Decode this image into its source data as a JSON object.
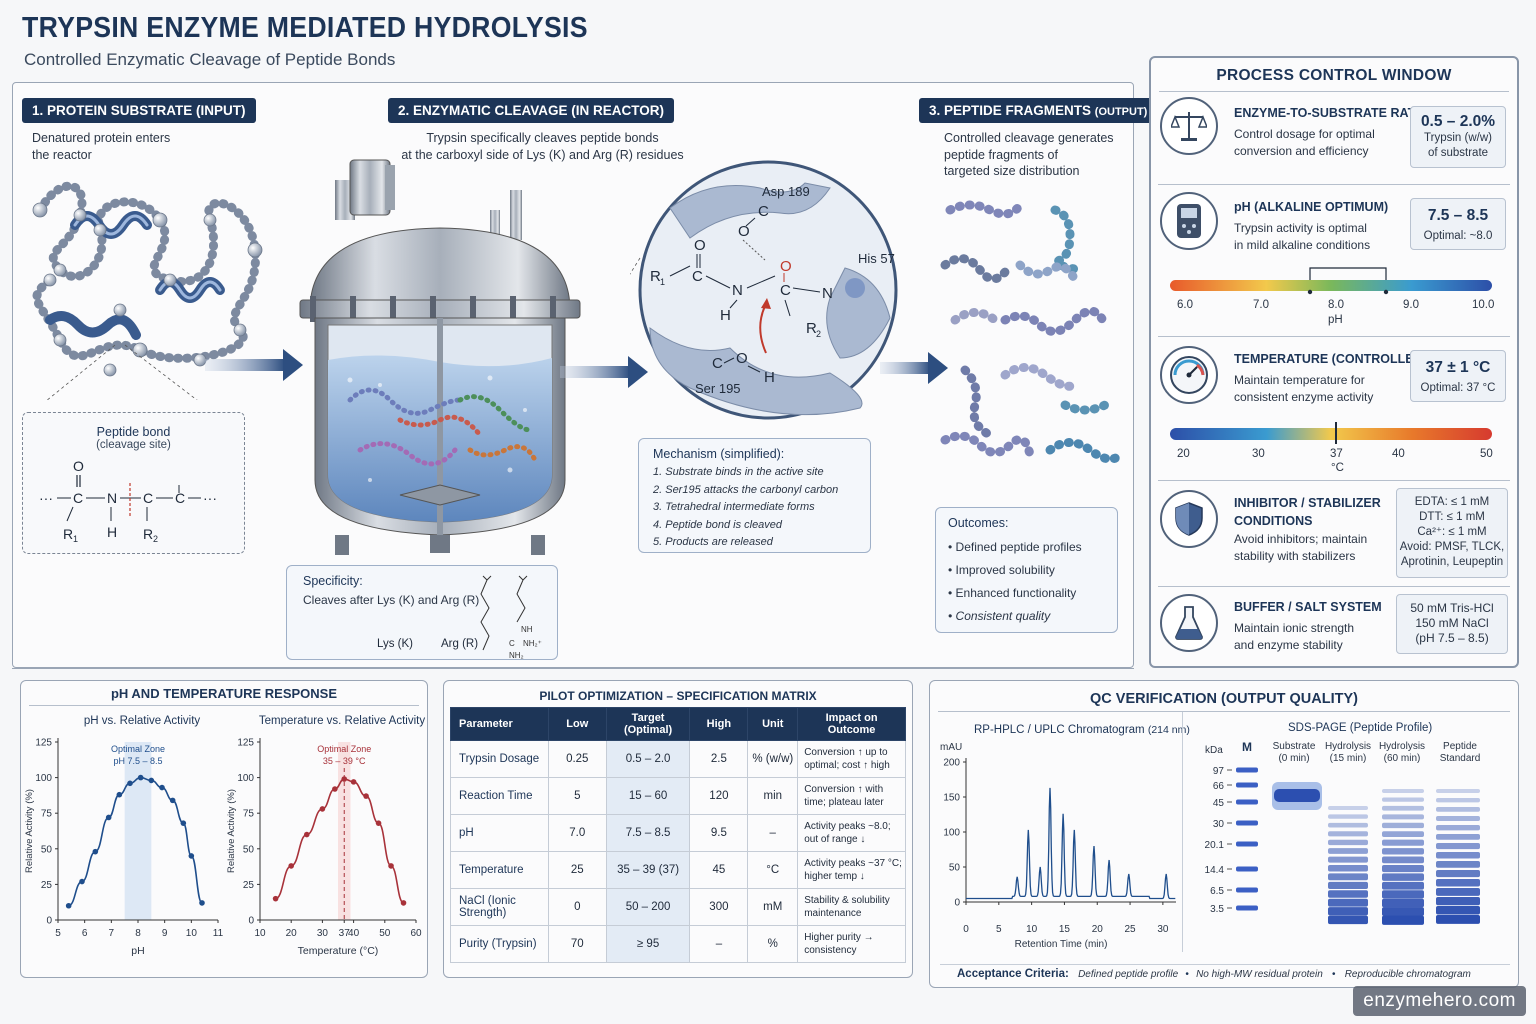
{
  "header": {
    "title": "TRYPSIN ENZYME MEDIATED HYDROLYSIS",
    "subtitle": "Controlled Enzymatic Cleavage of Peptide Bonds"
  },
  "step1": {
    "tag": "1. PROTEIN SUBSTRATE (INPUT)",
    "desc_1": "Denatured protein enters",
    "desc_2": "the reactor",
    "bond_title": "Peptide bond",
    "bond_sub": "(cleavage site)"
  },
  "step2": {
    "tag": "2. ENZYMATIC CLEAVAGE (IN REACTOR)",
    "desc_1": "Trypsin specifically cleaves peptide bonds",
    "desc_2": "at the carboxyl side of Lys (K) and Arg (R) residues",
    "active_site": {
      "asp": "Asp 189",
      "his": "His 57",
      "ser": "Ser 195"
    },
    "specificity_title": "Specificity:",
    "specificity_text": "Cleaves after Lys (K) and Arg (R)",
    "lys": "Lys (K)",
    "arg": "Arg (R)",
    "mechanism_title": "Mechanism (simplified):",
    "mechanism_steps": [
      "1. Substrate binds in the active site",
      "2. Ser195 attacks the carbonyl carbon",
      "3. Tetrahedral intermediate forms",
      "4. Peptide bond is cleaved",
      "5. Products are released"
    ]
  },
  "step3": {
    "tag": "3. PEPTIDE FRAGMENTS",
    "tag_small": "(OUTPUT)",
    "desc_1": "Controlled cleavage generates",
    "desc_2": "peptide fragments of",
    "desc_3": "targeted size distribution",
    "outcomes_title": "Outcomes:",
    "outcomes": [
      "• Defined peptide profiles",
      "• Improved solubility",
      "• Enhanced functionality",
      "• Consistent quality"
    ]
  },
  "pcw": {
    "title": "PROCESS CONTROL WINDOW",
    "rows": [
      {
        "icon": "balance-scale-icon",
        "h1": "ENZYME-TO-SUBSTRATE RATIO",
        "h2": "",
        "t1": "Control dosage for optimal",
        "t2": "conversion and efficiency",
        "v1": "0.5 – 2.0%",
        "v2": "Trypsin (w/w)",
        "v3": "of substrate"
      },
      {
        "icon": "ph-meter-icon",
        "h1": "pH (ALKALINE OPTIMUM)",
        "h2": "",
        "t1": "Trypsin activity is optimal",
        "t2": "in mild alkaline conditions",
        "v1": "7.5 – 8.5",
        "v2": "Optimal: ~8.0",
        "v3": ""
      },
      {
        "icon": "thermometer-gauge-icon",
        "h1": "TEMPERATURE (CONTROLLED)",
        "h2": "",
        "t1": "Maintain temperature for",
        "t2": "consistent enzyme activity",
        "v1": "37 ± 1 °C",
        "v2": "Optimal: 37 °C",
        "v3": ""
      },
      {
        "icon": "shield-icon",
        "h1": "INHIBITOR / STABILIZER",
        "h2": "CONDITIONS",
        "t1": "Avoid inhibitors; maintain",
        "t2": "stability with stabilizers",
        "v1": "EDTA:   ≤  1 mM",
        "v2": "DTT:   ≤  1 mM",
        "v3": "Ca²⁺:   ≤  1 mM",
        "v4": "Avoid: PMSF, TLCK,",
        "v5": "Aprotinin, Leupeptin"
      },
      {
        "icon": "flask-icon",
        "h1": "BUFFER / SALT SYSTEM",
        "h2": "",
        "t1": "Maintain ionic strength",
        "t2": "and enzyme stability",
        "v1": "50 mM Tris-HCl",
        "v2": "150 mM NaCl",
        "v3": "(pH 7.5 – 8.5)"
      }
    ],
    "ph_scale": {
      "ticks": [
        "6.0",
        "7.0",
        "8.0",
        "9.0",
        "10.0"
      ],
      "unit": "pH",
      "min": 6,
      "max": 10,
      "opt_low": 7.5,
      "opt_high": 8.5,
      "marker": 8.0
    },
    "temp_scale": {
      "ticks": [
        "20",
        "30",
        "37",
        "40",
        "50"
      ],
      "unit": "°C",
      "min": 20,
      "max": 50,
      "marker": 37
    }
  },
  "ph_temp": {
    "title": "pH  AND TEMPERATURE RESPONSE",
    "ph_chart_title": "pH vs. Relative Activity",
    "temp_chart_title": "Temperature vs. Relative Activity",
    "ph_zone_1": "Optimal Zone",
    "ph_zone_2": "pH 7.5 – 8.5",
    "temp_zone_1": "Optimal Zone",
    "temp_zone_2": "35 – 39 °C",
    "ylabel": "Relative Activity (%)",
    "ph_xlabel": "pH",
    "temp_xlabel": "Temperature (°C)"
  },
  "matrix": {
    "title": "PILOT OPTIMIZATION – SPECIFICATION MATRIX",
    "headers": [
      "Parameter",
      "Low",
      "Target (Optimal)",
      "High",
      "Unit",
      "Impact on Outcome"
    ],
    "rows": [
      [
        "Trypsin Dosage",
        "0.25",
        "0.5 – 2.0",
        "2.5",
        "% (w/w)",
        "Conversion ↑ up to optimal; cost ↑ high"
      ],
      [
        "Reaction Time",
        "5",
        "15 – 60",
        "120",
        "min",
        "Conversion ↑ with time; plateau later"
      ],
      [
        "pH",
        "7.0",
        "7.5 – 8.5",
        "9.5",
        "–",
        "Activity peaks ~8.0; out of range ↓"
      ],
      [
        "Temperature",
        "25",
        "35 – 39 (37)",
        "45",
        "°C",
        "Activity peaks ~37 °C; higher temp ↓"
      ],
      [
        "NaCl (Ionic Strength)",
        "0",
        "50 – 200",
        "300",
        "mM",
        "Stability & solubility maintenance"
      ],
      [
        "Purity (Trypsin)",
        "70",
        "≥ 95",
        "–",
        "%",
        "Higher purity → consistency"
      ]
    ]
  },
  "qc": {
    "title": "QC VERIFICATION (OUTPUT QUALITY)",
    "hplc_title": "RP-HPLC / UPLC Chromatogram",
    "hplc_sub": "(214 nm)",
    "hplc_ylabel": "mAU",
    "hplc_xlabel": "Retention Time (min)",
    "sds_title": "SDS-PAGE (Peptide Profile)",
    "kda": "kDa",
    "marker_lane": "M",
    "lanes": [
      "Substrate\n(0 min)",
      "Hydrolysis\n(15 min)",
      "Hydrolysis\n(60 min)",
      "Peptide\nStandard"
    ],
    "kda_values": [
      "97",
      "66",
      "45",
      "30",
      "20.1",
      "14.4",
      "6.5",
      "3.5"
    ],
    "acceptance_label": "Acceptance Criteria:",
    "acceptance_items": [
      "Defined peptide profile",
      "•",
      "No high-MW residual protein",
      "•",
      "Reproducible chromatogram"
    ]
  },
  "watermark": "enzymehero.com",
  "chart_data": [
    {
      "type": "line",
      "title": "pH vs. Relative Activity",
      "xlabel": "pH",
      "ylabel": "Relative Activity (%)",
      "xlim": [
        5,
        11
      ],
      "ylim": [
        0,
        125
      ],
      "x_ticks": [
        5,
        6,
        7,
        8,
        9,
        10,
        11
      ],
      "y_ticks": [
        0,
        25,
        50,
        75,
        100,
        125
      ],
      "x": [
        5.4,
        5.9,
        6.4,
        6.9,
        7.3,
        7.7,
        8.1,
        8.5,
        8.9,
        9.3,
        9.7,
        10.0,
        10.4
      ],
      "y": [
        10,
        27,
        48,
        72,
        88,
        96,
        100,
        98,
        93,
        84,
        68,
        45,
        12
      ],
      "optimal_zone": [
        7.5,
        8.5
      ],
      "color": "#1f4e8c"
    },
    {
      "type": "line",
      "title": "Temperature vs. Relative Activity",
      "xlabel": "Temperature (°C)",
      "ylabel": "Relative Activity (%)",
      "xlim": [
        10,
        60
      ],
      "ylim": [
        0,
        125
      ],
      "x_ticks": [
        10,
        20,
        30,
        37,
        40,
        50,
        60
      ],
      "y_ticks": [
        0,
        25,
        50,
        75,
        100,
        125
      ],
      "x": [
        15,
        20,
        25,
        30,
        34,
        37,
        40,
        44,
        48,
        52,
        56
      ],
      "y": [
        15,
        38,
        60,
        78,
        92,
        99,
        97,
        87,
        68,
        38,
        12
      ],
      "optimal_zone": [
        35,
        39
      ],
      "color": "#a8323a"
    },
    {
      "type": "line",
      "title": "RP-HPLC / UPLC Chromatogram (214 nm)",
      "xlabel": "Retention Time (min)",
      "ylabel": "mAU",
      "xlim": [
        0,
        32
      ],
      "ylim": [
        0,
        200
      ],
      "x_ticks": [
        0,
        5,
        10,
        15,
        20,
        25,
        30
      ],
      "y_ticks": [
        0,
        50,
        100,
        150,
        200
      ],
      "peaks": [
        {
          "x": 7.8,
          "y": 28
        },
        {
          "x": 9.5,
          "y": 95
        },
        {
          "x": 11.3,
          "y": 42
        },
        {
          "x": 12.8,
          "y": 155
        },
        {
          "x": 14.8,
          "y": 118
        },
        {
          "x": 16.5,
          "y": 95
        },
        {
          "x": 19.5,
          "y": 72
        },
        {
          "x": 21.8,
          "y": 52
        },
        {
          "x": 24.8,
          "y": 32
        },
        {
          "x": 30.5,
          "y": 35
        }
      ],
      "color": "#1f4e8c"
    }
  ]
}
